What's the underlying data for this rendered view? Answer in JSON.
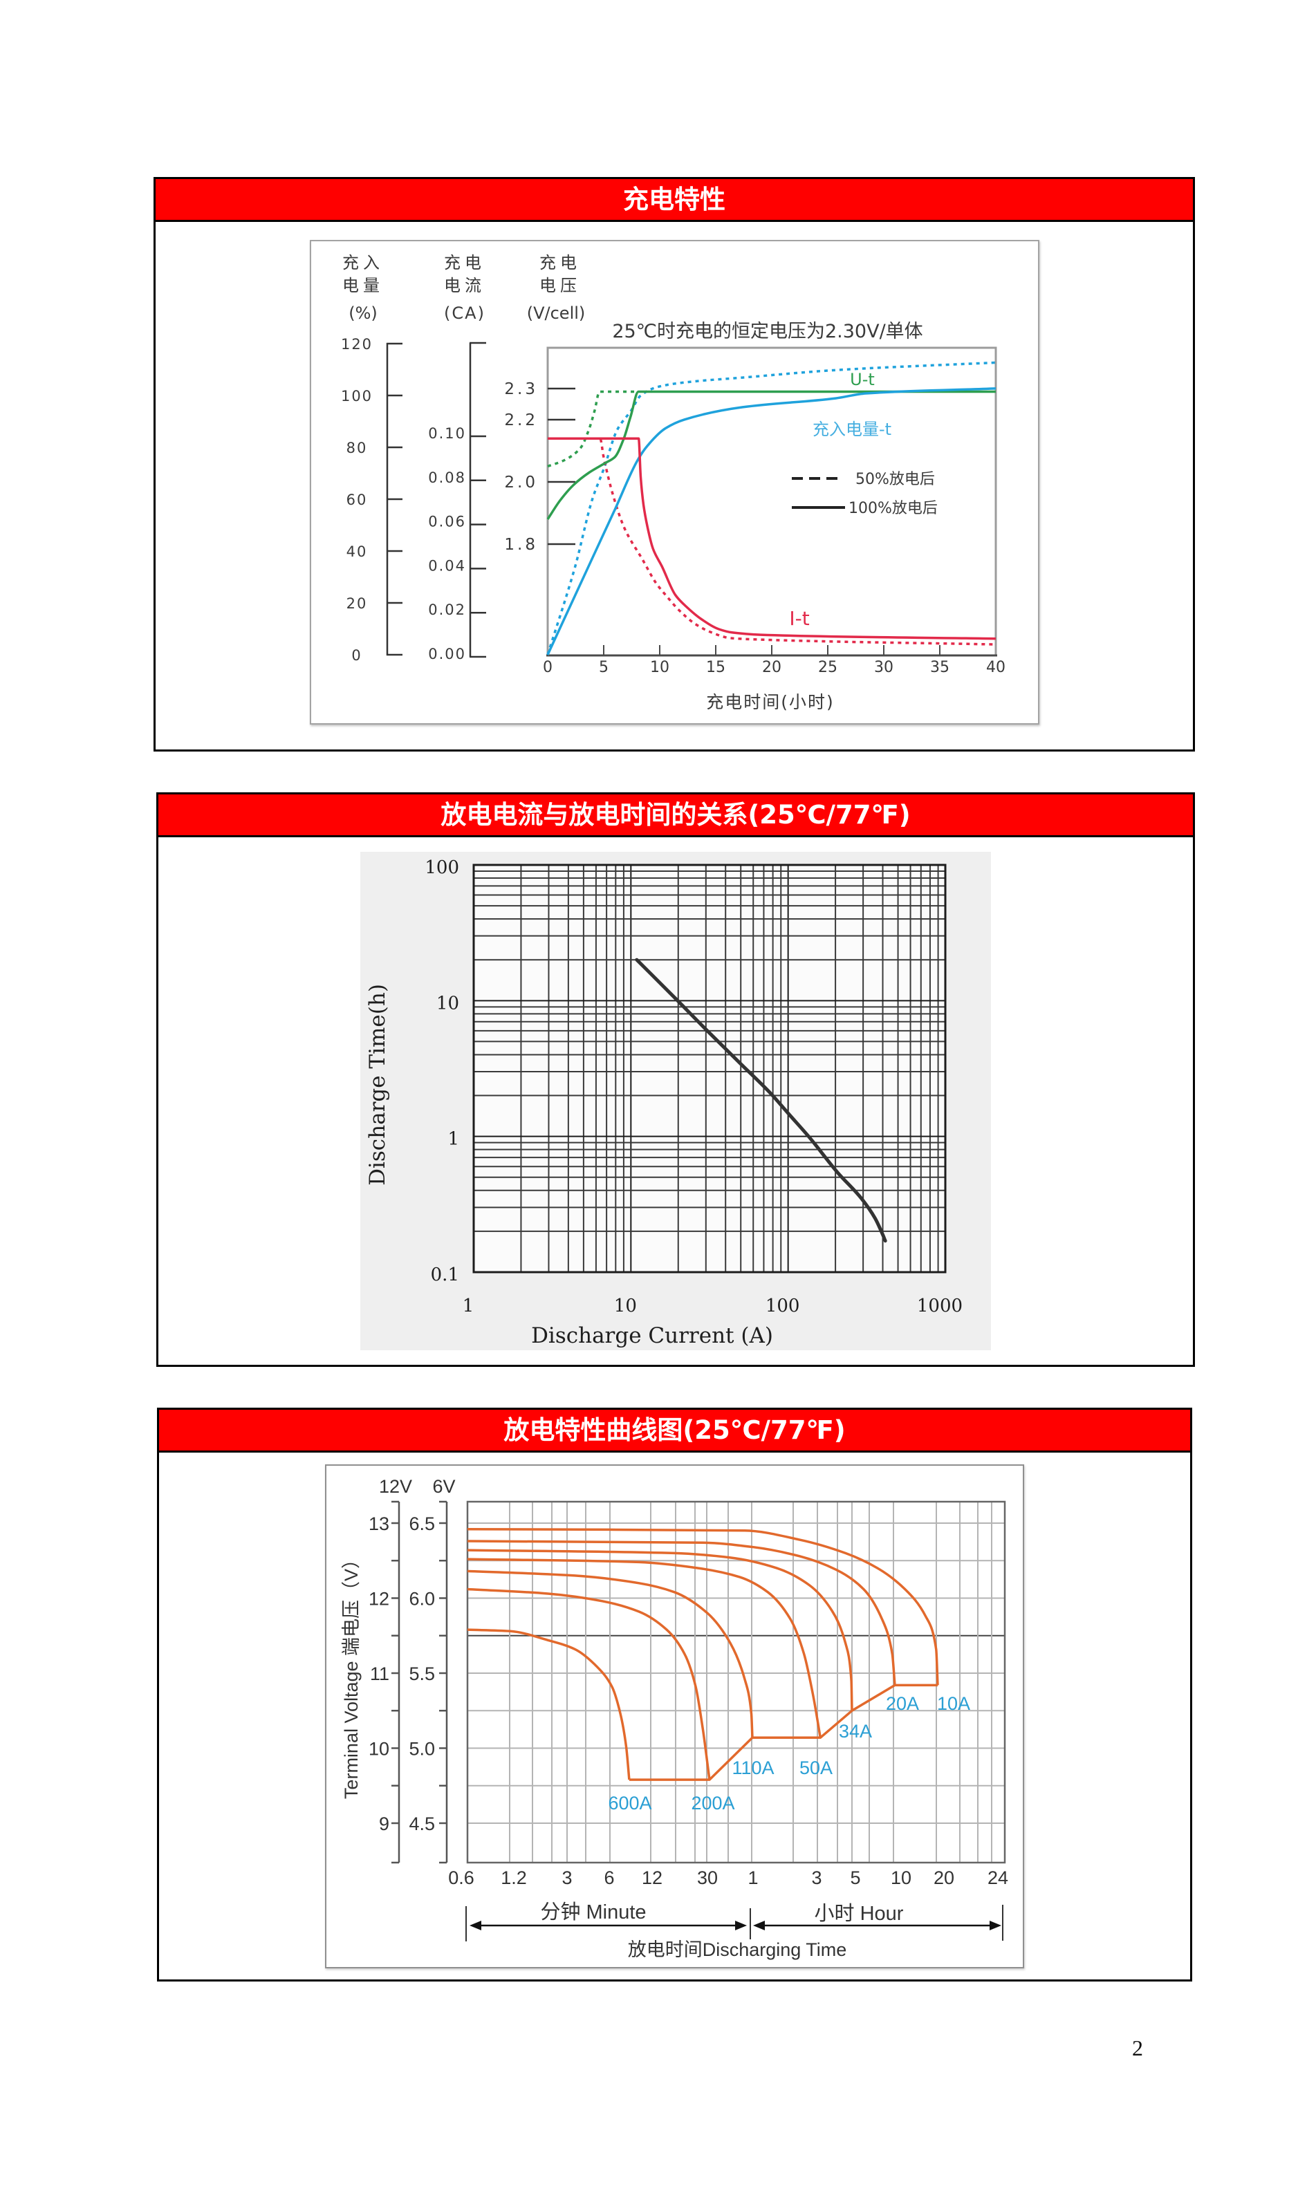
{
  "page": {
    "number": "2"
  },
  "sections": [
    {
      "title": "充电特性"
    },
    {
      "title": "放电电流与放电时间的关系(25℃/77℉)"
    },
    {
      "title": "放电特性曲线图(25℃/77℉)"
    }
  ],
  "chart_data": [
    {
      "type": "line",
      "title": "25℃时充电的恒定电压为2.30V/单体",
      "xlabel": "充电时间(小时)",
      "xlim": [
        0,
        40
      ],
      "x_ticks": [
        0,
        5,
        10,
        15,
        20,
        25,
        30,
        35,
        40
      ],
      "x_tick_labels": [
        "0",
        "5",
        "10",
        "15",
        "20",
        "25",
        "30",
        "35",
        "40"
      ],
      "grid": false,
      "y_axes": [
        {
          "id": "charge",
          "label_lines": [
            "充入",
            "电量",
            "(%)"
          ],
          "ylim": [
            0,
            120
          ],
          "ticks": [
            0,
            20,
            40,
            60,
            80,
            100,
            120
          ],
          "tick_labels": [
            "0",
            "20",
            "40",
            "60",
            "80",
            "100",
            "120"
          ]
        },
        {
          "id": "current",
          "label_lines": [
            "充电",
            "电流",
            "(CA)"
          ],
          "ylim": [
            0,
            0.1
          ],
          "ticks": [
            0,
            0.02,
            0.04,
            0.06,
            0.08,
            0.1
          ],
          "tick_labels": [
            "0.00",
            "0.02",
            "0.04",
            "0.06",
            "0.08",
            "0.10"
          ]
        },
        {
          "id": "voltage",
          "label_lines": [
            "充电",
            "电压",
            "(V/cell)"
          ],
          "ticks": [
            1.8,
            2.0,
            2.2,
            2.3
          ],
          "tick_labels": [
            "1.8",
            "2.0",
            "2.2",
            "2.3"
          ]
        }
      ],
      "legend": [
        {
          "label": "50%放电后",
          "style": "dashed"
        },
        {
          "label": "100%放电后",
          "style": "solid"
        }
      ],
      "legend_position": "right-middle inside plot",
      "annotations": {
        "voltage_curve": "U-t",
        "charge_curve": "充入电量-t",
        "current_curve": "I-t"
      },
      "colors": {
        "voltage": "#2e9e4f",
        "charge": "#1fa2dc",
        "current": "#e22a4a"
      },
      "series": [
        {
          "curve": "U-t",
          "condition": "100%放电后",
          "axis": "voltage",
          "style": "solid",
          "color": "#2e9e4f",
          "points": [
            [
              0,
              1.88
            ],
            [
              1.1,
              1.94
            ],
            [
              2.3,
              1.99
            ],
            [
              3.7,
              2.03
            ],
            [
              5.1,
              2.06
            ],
            [
              6.0,
              2.08
            ],
            [
              6.8,
              2.14
            ],
            [
              7.4,
              2.21
            ],
            [
              8.1,
              2.29
            ],
            [
              40,
              2.29
            ]
          ]
        },
        {
          "curve": "U-t",
          "condition": "50%放电后",
          "axis": "voltage",
          "style": "dashed",
          "color": "#2e9e4f",
          "points": [
            [
              0,
              2.05
            ],
            [
              1.5,
              2.07
            ],
            [
              2.95,
              2.11
            ],
            [
              3.7,
              2.17
            ],
            [
              4.2,
              2.23
            ],
            [
              4.62,
              2.29
            ],
            [
              8.1,
              2.29
            ]
          ]
        },
        {
          "curve": "充入电量-t",
          "condition": "100%放电后",
          "axis": "charge",
          "style": "solid",
          "color": "#1fa2dc",
          "points": [
            [
              0,
              0
            ],
            [
              4,
              37.4
            ],
            [
              6,
              56
            ],
            [
              8.06,
              75.3
            ],
            [
              8.9,
              80.6
            ],
            [
              10.5,
              87.3
            ],
            [
              12.2,
              90.7
            ],
            [
              17.4,
              95.5
            ],
            [
              25.7,
              98.9
            ],
            [
              28.4,
              100.8
            ],
            [
              40,
              102.7
            ]
          ]
        },
        {
          "curve": "充入电量-t",
          "condition": "50%放电后",
          "axis": "charge",
          "style": "dashed",
          "color": "#1fa2dc",
          "points": [
            [
              0,
              0
            ],
            [
              2.46,
              34.2
            ],
            [
              4.0,
              60.2
            ],
            [
              5.0,
              71.6
            ],
            [
              6.2,
              86.7
            ],
            [
              7.45,
              94.2
            ],
            [
              8.3,
              100.0
            ],
            [
              9.9,
              103.4
            ],
            [
              12.8,
              105.3
            ],
            [
              17.4,
              106.9
            ],
            [
              25.7,
              109.8
            ],
            [
              40,
              112.7
            ]
          ]
        },
        {
          "curve": "I-t",
          "condition": "100%放电后",
          "axis": "current",
          "style": "solid",
          "color": "#e22a4a",
          "points": [
            [
              0,
              0.099
            ],
            [
              8.12,
              0.099
            ],
            [
              8.3,
              0.0815
            ],
            [
              8.55,
              0.069
            ],
            [
              8.9,
              0.059
            ],
            [
              9.4,
              0.049
            ],
            [
              10.2,
              0.041
            ],
            [
              11.4,
              0.028
            ],
            [
              12.4,
              0.0226
            ],
            [
              13.85,
              0.0166
            ],
            [
              15.3,
              0.0125
            ],
            [
              16.5,
              0.011
            ],
            [
              19,
              0.01
            ],
            [
              40,
              0.0082
            ]
          ]
        },
        {
          "curve": "I-t",
          "condition": "50%放电后",
          "axis": "current",
          "style": "dashed",
          "color": "#e22a4a",
          "points": [
            [
              0,
              0.099
            ],
            [
              4.68,
              0.099
            ],
            [
              4.98,
              0.0909
            ],
            [
              5.85,
              0.073
            ],
            [
              6.83,
              0.0586
            ],
            [
              8.49,
              0.0439
            ],
            [
              9.66,
              0.0335
            ],
            [
              10.65,
              0.0273
            ],
            [
              11.75,
              0.021
            ],
            [
              13.23,
              0.0147
            ],
            [
              14.65,
              0.011
            ],
            [
              16.3,
              0.0085
            ],
            [
              19,
              0.0078
            ],
            [
              40,
              0.0056
            ]
          ]
        }
      ]
    },
    {
      "type": "line",
      "scale": "log-log",
      "title": "",
      "xlabel": "Discharge Current (A)",
      "ylabel": "Discharge Time(h)",
      "xlim": [
        1,
        1000
      ],
      "ylim": [
        0.1,
        100
      ],
      "x_ticks": [
        1,
        10,
        100,
        1000
      ],
      "x_tick_labels": [
        "1",
        "10",
        "100",
        "1000"
      ],
      "y_ticks": [
        100,
        10,
        1,
        0.1
      ],
      "y_tick_labels": [
        "100",
        "10",
        "1",
        "0.1"
      ],
      "grid": true,
      "line_color": "#333333",
      "series": [
        {
          "points": [
            [
              10.9,
              20
            ],
            [
              20,
              9.9
            ],
            [
              30.4,
              6.05
            ],
            [
              50,
              3.42
            ],
            [
              78.5,
              2.04
            ],
            [
              100,
              1.48
            ],
            [
              138,
              0.97
            ],
            [
              207,
              0.54
            ],
            [
              292,
              0.35
            ],
            [
              357,
              0.25
            ],
            [
              399,
              0.19
            ],
            [
              415,
              0.17
            ]
          ]
        }
      ]
    },
    {
      "type": "line",
      "title": "",
      "xlabel": "放电时间Discharging Time",
      "ylabel": "Terminal Voltage 端电压（V）",
      "x_groups": [
        {
          "label": "分钟 Minute"
        },
        {
          "label": "小时 Hour"
        }
      ],
      "x_tick_labels": [
        "0.6",
        "1.2",
        "3",
        "6",
        "12",
        "30",
        "1",
        "3",
        "5",
        "10",
        "20",
        "24"
      ],
      "x_unit_of_points": "minutes",
      "y_axes": [
        {
          "unit": "12V",
          "ticks": [
            13,
            12,
            11,
            10,
            9
          ],
          "tick_labels": [
            "13",
            "12",
            "11",
            "10",
            "9"
          ]
        },
        {
          "unit": "6V",
          "ticks": [
            6.5,
            6.0,
            5.5,
            5.0,
            4.5
          ],
          "tick_labels": [
            "6.5",
            "6.0",
            "5.5",
            "5.0",
            "4.5"
          ]
        }
      ],
      "y_unit_of_points": "V (6V scale)",
      "grid": true,
      "series_color": "#e2692c",
      "label_color": "#2b9fd4",
      "series": [
        {
          "name": "600A",
          "points": [
            [
              0.6,
              5.79
            ],
            [
              1.2,
              5.78
            ],
            [
              2.2,
              5.72
            ],
            [
              3.4,
              5.66
            ],
            [
              4.9,
              5.54
            ],
            [
              6.2,
              5.41
            ],
            [
              7.1,
              5.23
            ],
            [
              7.8,
              5.01
            ],
            [
              8.2,
              4.79
            ]
          ]
        },
        {
          "name": "200A",
          "points": [
            [
              0.6,
              6.06
            ],
            [
              2.2,
              6.03
            ],
            [
              5.3,
              5.98
            ],
            [
              9.6,
              5.91
            ],
            [
              15,
              5.79
            ],
            [
              20,
              5.63
            ],
            [
              24,
              5.41
            ],
            [
              27,
              5.12
            ],
            [
              30,
              4.79
            ]
          ]
        },
        {
          "name": "110A",
          "points": [
            [
              0.6,
              6.18
            ],
            [
              3.4,
              6.15
            ],
            [
              9.6,
              6.1
            ],
            [
              17,
              6.04
            ],
            [
              29,
              5.9
            ],
            [
              42,
              5.7
            ],
            [
              53,
              5.46
            ],
            [
              59,
              5.23
            ],
            [
              60,
              5.07
            ]
          ]
        },
        {
          "name": "50A",
          "points": [
            [
              0.6,
              6.26
            ],
            [
              9.6,
              6.24
            ],
            [
              25,
              6.2
            ],
            [
              49,
              6.14
            ],
            [
              77,
              6.04
            ],
            [
              111,
              5.86
            ],
            [
              138,
              5.63
            ],
            [
              161,
              5.34
            ],
            [
              180,
              5.07
            ]
          ]
        },
        {
          "name": "34A",
          "points": [
            [
              0.6,
              6.32
            ],
            [
              17,
              6.3
            ],
            [
              42,
              6.27
            ],
            [
              89,
              6.2
            ],
            [
              149,
              6.09
            ],
            [
              216,
              5.92
            ],
            [
              270,
              5.7
            ],
            [
              297,
              5.45
            ],
            [
              300,
              5.25
            ]
          ]
        },
        {
          "name": "20A",
          "points": [
            [
              0.6,
              6.38
            ],
            [
              27,
              6.37
            ],
            [
              61,
              6.34
            ],
            [
              128,
              6.28
            ],
            [
              232,
              6.19
            ],
            [
              362,
              6.06
            ],
            [
              488,
              5.86
            ],
            [
              575,
              5.63
            ],
            [
              600,
              5.42
            ]
          ]
        },
        {
          "name": "10A",
          "points": [
            [
              0.6,
              6.46
            ],
            [
              53,
              6.45
            ],
            [
              128,
              6.39
            ],
            [
              270,
              6.3
            ],
            [
              453,
              6.2
            ],
            [
              706,
              6.06
            ],
            [
              986,
              5.88
            ],
            [
              1169,
              5.66
            ],
            [
              1200,
              5.42
            ]
          ]
        }
      ],
      "end_voltage_line": [
        [
          8.2,
          4.79
        ],
        [
          30,
          4.79
        ],
        [
          60,
          5.07
        ],
        [
          180,
          5.07
        ],
        [
          300,
          5.25
        ],
        [
          600,
          5.42
        ],
        [
          1200,
          5.42
        ]
      ]
    }
  ]
}
